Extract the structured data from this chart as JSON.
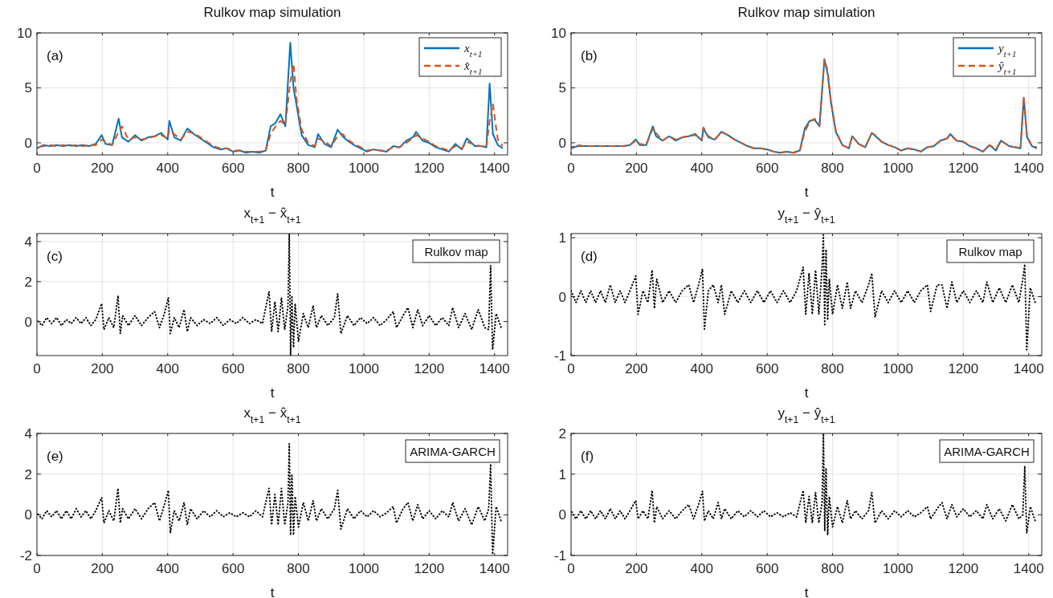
{
  "chart_data": [
    {
      "type": "line",
      "title": "Rulkov map simulation",
      "xlabel": "t",
      "xlim": [
        0,
        1440
      ],
      "xticks": [
        0,
        200,
        400,
        600,
        800,
        1000,
        1200,
        1400
      ],
      "ylim": [
        -1.1,
        10
      ],
      "yticks": [
        0,
        5,
        10
      ],
      "grid": true,
      "legend": "top right",
      "annotations": [
        "(a)"
      ],
      "x": [
        0,
        20,
        40,
        60,
        80,
        100,
        120,
        140,
        160,
        180,
        198,
        210,
        230,
        250,
        260,
        280,
        300,
        320,
        340,
        360,
        380,
        400,
        405,
        420,
        440,
        460,
        480,
        500,
        520,
        540,
        560,
        580,
        600,
        620,
        640,
        660,
        680,
        700,
        715,
        730,
        745,
        760,
        775,
        785,
        795,
        810,
        830,
        850,
        860,
        880,
        900,
        920,
        935,
        950,
        970,
        990,
        1010,
        1030,
        1050,
        1070,
        1090,
        1110,
        1130,
        1150,
        1160,
        1180,
        1200,
        1220,
        1240,
        1260,
        1280,
        1300,
        1315,
        1340,
        1360,
        1375,
        1385,
        1395,
        1410,
        1425
      ],
      "series": [
        {
          "name": "x$_{t+1}$",
          "color": "#0072bd",
          "line_style": "solid",
          "values": [
            -0.5,
            -0.2,
            -0.3,
            -0.2,
            -0.3,
            -0.2,
            -0.3,
            -0.2,
            -0.3,
            -0.1,
            0.7,
            -0.1,
            -0.2,
            2.2,
            0.5,
            0.1,
            0.7,
            0.2,
            0.5,
            0.6,
            0.9,
            0.3,
            2.0,
            0.5,
            0.2,
            1.3,
            0.8,
            0.4,
            0.0,
            -0.4,
            -0.6,
            -0.5,
            -0.8,
            -0.7,
            -0.9,
            -0.8,
            -0.9,
            -0.7,
            1.5,
            1.8,
            2.6,
            1.5,
            9.1,
            5.0,
            3.3,
            0.7,
            -0.2,
            -0.4,
            0.8,
            -0.1,
            -0.4,
            1.2,
            0.6,
            0.2,
            -0.2,
            -0.5,
            -0.8,
            -0.6,
            -0.7,
            -0.8,
            -0.3,
            -0.4,
            0.2,
            0.5,
            1.0,
            0.2,
            0.0,
            -0.4,
            -0.6,
            -0.8,
            -0.1,
            -0.6,
            0.4,
            -0.3,
            -0.3,
            -0.4,
            5.4,
            0.8,
            -0.2,
            -0.5
          ]
        },
        {
          "name": "x̂$_{t+1}$",
          "color": "#d95319",
          "line_style": "dashed",
          "values": [
            -0.4,
            -0.3,
            -0.2,
            -0.3,
            -0.2,
            -0.3,
            -0.2,
            -0.3,
            -0.2,
            -0.2,
            0.3,
            0.1,
            -0.2,
            1.0,
            1.5,
            0.3,
            0.5,
            0.3,
            0.4,
            0.6,
            0.7,
            0.4,
            1.2,
            0.8,
            0.3,
            1.0,
            0.9,
            0.5,
            0.1,
            -0.3,
            -0.5,
            -0.5,
            -0.7,
            -0.7,
            -0.8,
            -0.8,
            -0.8,
            -0.7,
            0.8,
            1.5,
            2.0,
            1.6,
            5.5,
            7.2,
            3.8,
            1.2,
            0.0,
            -0.3,
            0.4,
            0.1,
            -0.3,
            0.6,
            0.8,
            0.3,
            -0.1,
            -0.4,
            -0.7,
            -0.6,
            -0.7,
            -0.7,
            -0.4,
            -0.4,
            0.0,
            0.4,
            0.7,
            0.4,
            0.1,
            -0.3,
            -0.5,
            -0.7,
            -0.3,
            -0.5,
            0.1,
            -0.2,
            -0.3,
            -0.4,
            2.0,
            3.5,
            0.3,
            -0.3
          ]
        }
      ]
    },
    {
      "type": "line",
      "title": "Rulkov map simulation",
      "xlabel": "t",
      "xlim": [
        0,
        1440
      ],
      "xticks": [
        0,
        200,
        400,
        600,
        800,
        1000,
        1200,
        1400
      ],
      "ylim": [
        -1.1,
        10
      ],
      "yticks": [
        0,
        5,
        10
      ],
      "grid": true,
      "legend": "top right",
      "annotations": [
        "(b)"
      ],
      "x": [
        0,
        20,
        40,
        60,
        80,
        100,
        120,
        140,
        160,
        180,
        198,
        210,
        230,
        250,
        260,
        280,
        300,
        320,
        340,
        360,
        380,
        400,
        405,
        420,
        440,
        460,
        480,
        500,
        520,
        540,
        560,
        580,
        600,
        620,
        640,
        660,
        680,
        700,
        715,
        730,
        745,
        760,
        775,
        785,
        795,
        810,
        830,
        850,
        860,
        880,
        900,
        920,
        935,
        950,
        970,
        990,
        1010,
        1030,
        1050,
        1070,
        1090,
        1110,
        1130,
        1150,
        1160,
        1180,
        1200,
        1220,
        1240,
        1260,
        1280,
        1300,
        1315,
        1340,
        1360,
        1375,
        1385,
        1395,
        1410,
        1425
      ],
      "series": [
        {
          "name": "y$_{t+1}$",
          "color": "#0072bd",
          "line_style": "solid",
          "values": [
            -0.5,
            -0.3,
            -0.3,
            -0.3,
            -0.3,
            -0.3,
            -0.3,
            -0.3,
            -0.3,
            -0.2,
            0.3,
            -0.2,
            -0.2,
            1.5,
            0.6,
            0.2,
            0.6,
            0.2,
            0.5,
            0.6,
            0.8,
            0.2,
            1.3,
            0.5,
            0.3,
            1.0,
            0.7,
            0.3,
            0.0,
            -0.3,
            -0.5,
            -0.5,
            -0.6,
            -0.8,
            -0.9,
            -0.8,
            -0.9,
            -0.7,
            1.3,
            2.0,
            2.1,
            1.5,
            7.6,
            6.3,
            3.7,
            1.0,
            -0.2,
            -0.5,
            0.6,
            -0.1,
            -0.4,
            0.9,
            0.5,
            0.1,
            -0.2,
            -0.4,
            -0.7,
            -0.5,
            -0.6,
            -0.8,
            -0.4,
            -0.3,
            0.2,
            0.4,
            0.8,
            0.2,
            0.1,
            -0.3,
            -0.5,
            -0.8,
            -0.2,
            -0.7,
            0.2,
            -0.3,
            -0.4,
            -0.5,
            4.1,
            0.5,
            -0.3,
            -0.5
          ]
        },
        {
          "name": "ŷ$_{t+1}$",
          "color": "#d95319",
          "line_style": "dashed",
          "values": [
            -0.4,
            -0.2,
            -0.3,
            -0.3,
            -0.3,
            -0.3,
            -0.3,
            -0.3,
            -0.3,
            -0.2,
            0.2,
            -0.1,
            -0.2,
            1.3,
            0.9,
            0.2,
            0.6,
            0.3,
            0.5,
            0.6,
            0.7,
            0.3,
            1.4,
            0.6,
            0.3,
            1.0,
            0.7,
            0.3,
            0.0,
            -0.3,
            -0.5,
            -0.5,
            -0.6,
            -0.8,
            -0.9,
            -0.8,
            -0.9,
            -0.7,
            1.0,
            1.9,
            2.2,
            1.6,
            7.6,
            6.6,
            3.8,
            1.1,
            -0.2,
            -0.5,
            0.6,
            -0.1,
            -0.4,
            0.9,
            0.6,
            0.1,
            -0.2,
            -0.4,
            -0.7,
            -0.5,
            -0.6,
            -0.8,
            -0.4,
            -0.3,
            0.2,
            0.4,
            0.7,
            0.2,
            0.1,
            -0.3,
            -0.5,
            -0.8,
            -0.2,
            -0.6,
            0.2,
            -0.3,
            -0.4,
            -0.5,
            4.2,
            0.6,
            -0.3,
            -0.4
          ]
        }
      ]
    },
    {
      "type": "line",
      "title": "x$_{t+1}$ − x̂$_{t+1}$",
      "xlabel": "t",
      "xlim": [
        0,
        1440
      ],
      "xticks": [
        0,
        200,
        400,
        600,
        800,
        1000,
        1200,
        1400
      ],
      "ylim": [
        -1.7,
        4.4
      ],
      "yticks": [
        0,
        2,
        4
      ],
      "grid": true,
      "annotations": [
        "(c)",
        "Rulkov map"
      ],
      "x": [
        0,
        15,
        30,
        45,
        60,
        75,
        90,
        105,
        120,
        135,
        150,
        165,
        180,
        198,
        205,
        220,
        235,
        248,
        255,
        262,
        280,
        300,
        320,
        340,
        360,
        375,
        390,
        402,
        408,
        420,
        435,
        450,
        460,
        470,
        490,
        510,
        530,
        550,
        570,
        590,
        610,
        630,
        650,
        670,
        690,
        710,
        718,
        728,
        738,
        748,
        758,
        768,
        772,
        776,
        780,
        785,
        790,
        800,
        815,
        830,
        845,
        855,
        870,
        890,
        910,
        920,
        930,
        950,
        970,
        990,
        1010,
        1030,
        1050,
        1070,
        1090,
        1100,
        1120,
        1135,
        1150,
        1165,
        1180,
        1200,
        1220,
        1240,
        1260,
        1272,
        1290,
        1310,
        1330,
        1350,
        1370,
        1382,
        1388,
        1394,
        1405,
        1420
      ],
      "series": [
        {
          "color": "#000000",
          "line_style": "dotted",
          "values": [
            0.1,
            -0.2,
            0.2,
            -0.1,
            0.2,
            -0.2,
            0.1,
            -0.1,
            0.2,
            -0.1,
            0.2,
            -0.2,
            0.1,
            0.9,
            -0.4,
            0.2,
            -0.3,
            1.3,
            -0.6,
            0.3,
            -0.2,
            0.3,
            -0.2,
            0.2,
            0.5,
            -0.3,
            0.4,
            1.2,
            -0.6,
            0.2,
            -0.3,
            0.6,
            -0.5,
            0.2,
            -0.2,
            0.1,
            -0.1,
            0.2,
            -0.2,
            0.1,
            -0.1,
            0.2,
            -0.1,
            0.1,
            -0.1,
            1.5,
            -0.5,
            1.0,
            -0.5,
            1.2,
            -0.4,
            0.8,
            4.4,
            -1.7,
            1.3,
            -1.3,
            0.9,
            -1.0,
            0.4,
            -0.3,
            0.8,
            -0.3,
            0.3,
            -0.2,
            0.2,
            1.4,
            -0.6,
            0.3,
            -0.2,
            0.2,
            -0.1,
            0.2,
            -0.2,
            0.1,
            0.5,
            -0.3,
            0.3,
            0.7,
            -0.3,
            0.6,
            -0.2,
            0.3,
            -0.2,
            0.2,
            -0.2,
            0.7,
            -0.3,
            0.4,
            -0.4,
            0.6,
            -0.3,
            -0.4,
            2.8,
            -1.4,
            0.4,
            -0.3
          ]
        }
      ]
    },
    {
      "type": "line",
      "title": "y$_{t+1}$ − ŷ$_{t+1}$",
      "xlabel": "t",
      "xlim": [
        0,
        1440
      ],
      "xticks": [
        0,
        200,
        400,
        600,
        800,
        1000,
        1200,
        1400
      ],
      "ylim": [
        -1,
        1.07
      ],
      "yticks": [
        -1,
        0,
        1
      ],
      "grid": true,
      "annotations": [
        "(d)",
        "Rulkov map"
      ],
      "x": [
        0,
        15,
        30,
        45,
        60,
        75,
        90,
        105,
        120,
        135,
        150,
        165,
        180,
        198,
        205,
        220,
        235,
        248,
        255,
        262,
        280,
        300,
        320,
        340,
        360,
        375,
        390,
        402,
        408,
        420,
        435,
        450,
        460,
        470,
        490,
        510,
        530,
        550,
        570,
        590,
        610,
        630,
        650,
        670,
        690,
        710,
        718,
        728,
        738,
        748,
        758,
        768,
        772,
        776,
        780,
        785,
        790,
        800,
        815,
        830,
        845,
        855,
        870,
        890,
        910,
        920,
        930,
        950,
        970,
        990,
        1010,
        1030,
        1050,
        1070,
        1090,
        1100,
        1120,
        1135,
        1150,
        1165,
        1180,
        1200,
        1220,
        1240,
        1260,
        1272,
        1290,
        1310,
        1330,
        1350,
        1370,
        1382,
        1388,
        1394,
        1405,
        1420
      ],
      "series": [
        {
          "color": "#000000",
          "line_style": "dotted",
          "values": [
            0.1,
            -0.1,
            0.1,
            -0.1,
            0.1,
            -0.1,
            0.1,
            -0.1,
            0.2,
            -0.1,
            0.1,
            -0.1,
            0.1,
            0.35,
            -0.3,
            0.1,
            -0.1,
            0.45,
            -0.2,
            0.3,
            -0.1,
            0.1,
            -0.1,
            0.1,
            0.2,
            -0.1,
            0.2,
            0.47,
            -0.55,
            0.1,
            0.2,
            -0.1,
            0.2,
            -0.3,
            0.1,
            -0.1,
            0.1,
            -0.1,
            0.1,
            -0.1,
            0.1,
            -0.1,
            0.1,
            -0.1,
            0.1,
            0.5,
            -0.3,
            0.4,
            -0.3,
            0.45,
            -0.3,
            0.5,
            1.05,
            -0.5,
            0.8,
            -0.4,
            0.3,
            -0.3,
            0.2,
            -0.2,
            0.25,
            -0.2,
            0.1,
            -0.1,
            0.2,
            0.4,
            -0.35,
            0.1,
            -0.1,
            0.1,
            -0.1,
            0.1,
            -0.1,
            0.1,
            0.2,
            -0.25,
            0.2,
            0.2,
            -0.2,
            0.25,
            -0.1,
            0.1,
            -0.1,
            0.1,
            -0.1,
            0.25,
            -0.1,
            0.15,
            -0.1,
            0.2,
            -0.1,
            0.3,
            0.55,
            -0.9,
            0.15,
            -0.1
          ]
        }
      ]
    },
    {
      "type": "line",
      "title": "x$_{t+1}$ − x̂$_{t+1}$",
      "xlabel": "t",
      "xlim": [
        0,
        1440
      ],
      "xticks": [
        0,
        200,
        400,
        600,
        800,
        1000,
        1200,
        1400
      ],
      "ylim": [
        -2,
        4
      ],
      "yticks": [
        -2,
        0,
        2,
        4
      ],
      "grid": true,
      "annotations": [
        "(e)",
        "ARIMA-GARCH"
      ],
      "x": [
        0,
        15,
        30,
        45,
        60,
        75,
        90,
        105,
        120,
        135,
        150,
        165,
        180,
        198,
        205,
        220,
        235,
        248,
        255,
        262,
        280,
        300,
        320,
        340,
        360,
        375,
        390,
        402,
        408,
        420,
        435,
        450,
        460,
        470,
        490,
        510,
        530,
        550,
        570,
        590,
        610,
        630,
        650,
        670,
        690,
        710,
        718,
        728,
        738,
        748,
        758,
        768,
        772,
        776,
        780,
        785,
        790,
        800,
        815,
        830,
        845,
        855,
        870,
        890,
        910,
        920,
        930,
        950,
        970,
        990,
        1010,
        1030,
        1050,
        1070,
        1090,
        1100,
        1120,
        1135,
        1150,
        1165,
        1180,
        1200,
        1220,
        1240,
        1260,
        1272,
        1290,
        1310,
        1330,
        1350,
        1370,
        1382,
        1388,
        1394,
        1405,
        1420
      ],
      "series": [
        {
          "color": "#000000",
          "line_style": "dotted",
          "values": [
            0.1,
            -0.2,
            0.2,
            -0.1,
            0.2,
            -0.2,
            0.2,
            -0.2,
            0.3,
            -0.1,
            0.2,
            -0.2,
            0.2,
            0.85,
            -0.4,
            0.2,
            -0.3,
            1.3,
            -0.4,
            0.3,
            -0.2,
            0.3,
            -0.2,
            0.3,
            0.6,
            -0.3,
            0.5,
            1.2,
            -0.9,
            0.2,
            -0.3,
            0.6,
            -0.5,
            0.3,
            -0.2,
            0.2,
            -0.1,
            0.2,
            -0.1,
            0.1,
            -0.1,
            0.1,
            -0.1,
            0.2,
            -0.1,
            1.3,
            -0.5,
            1.0,
            -0.5,
            1.3,
            -0.5,
            0.6,
            3.5,
            -1.0,
            2.0,
            -1.0,
            0.9,
            -0.6,
            0.6,
            -0.3,
            0.7,
            -0.3,
            0.3,
            -0.2,
            0.3,
            1.2,
            -0.7,
            0.3,
            -0.2,
            0.2,
            -0.1,
            0.2,
            -0.1,
            0.1,
            0.4,
            -0.4,
            0.3,
            0.6,
            -0.3,
            0.5,
            -0.2,
            0.2,
            -0.2,
            0.2,
            -0.1,
            0.6,
            -0.3,
            0.3,
            -0.5,
            0.4,
            -0.3,
            0.3,
            2.5,
            -1.95,
            0.4,
            -0.3
          ]
        }
      ]
    },
    {
      "type": "line",
      "title": "y$_{t+1}$ − ŷ$_{t+1}$",
      "xlabel": "t",
      "xlim": [
        0,
        1440
      ],
      "xticks": [
        0,
        200,
        400,
        600,
        800,
        1000,
        1200,
        1400
      ],
      "ylim": [
        -1,
        2
      ],
      "yticks": [
        -1,
        0,
        1,
        2
      ],
      "grid": true,
      "annotations": [
        "(f)",
        "ARIMA-GARCH"
      ],
      "x": [
        0,
        15,
        30,
        45,
        60,
        75,
        90,
        105,
        120,
        135,
        150,
        165,
        180,
        198,
        205,
        220,
        235,
        248,
        255,
        262,
        280,
        300,
        320,
        340,
        360,
        375,
        390,
        402,
        408,
        420,
        435,
        450,
        460,
        470,
        490,
        510,
        530,
        550,
        570,
        590,
        610,
        630,
        650,
        670,
        690,
        710,
        718,
        728,
        738,
        748,
        758,
        768,
        772,
        776,
        780,
        785,
        790,
        800,
        815,
        830,
        845,
        855,
        870,
        890,
        910,
        920,
        930,
        950,
        970,
        990,
        1010,
        1030,
        1050,
        1070,
        1090,
        1100,
        1120,
        1135,
        1150,
        1165,
        1180,
        1200,
        1220,
        1240,
        1260,
        1272,
        1290,
        1310,
        1330,
        1350,
        1370,
        1382,
        1388,
        1394,
        1405,
        1420
      ],
      "series": [
        {
          "color": "#000000",
          "line_style": "dotted",
          "values": [
            0.1,
            -0.1,
            0.1,
            -0.1,
            0.1,
            -0.1,
            0.1,
            -0.1,
            0.15,
            -0.1,
            0.1,
            -0.1,
            0.1,
            0.35,
            -0.1,
            0.1,
            -0.1,
            0.6,
            -0.2,
            0.2,
            -0.1,
            0.1,
            -0.1,
            0.1,
            0.25,
            -0.1,
            0.25,
            0.58,
            -0.15,
            0.1,
            -0.1,
            0.3,
            -0.1,
            0.15,
            -0.1,
            0.1,
            -0.05,
            0.1,
            -0.05,
            0.1,
            -0.05,
            0.05,
            -0.05,
            0.05,
            -0.05,
            0.6,
            -0.2,
            0.45,
            -0.2,
            0.55,
            -0.2,
            0.3,
            2.0,
            -0.4,
            1.15,
            -0.5,
            0.45,
            -0.3,
            0.2,
            -0.2,
            0.35,
            -0.1,
            0.1,
            -0.1,
            0.1,
            0.55,
            -0.2,
            0.1,
            -0.1,
            0.1,
            -0.05,
            0.1,
            -0.05,
            0.05,
            0.2,
            -0.1,
            0.15,
            0.3,
            -0.1,
            0.25,
            -0.05,
            0.15,
            -0.05,
            0.1,
            -0.1,
            0.25,
            -0.1,
            0.15,
            -0.15,
            0.25,
            -0.1,
            0.0,
            1.2,
            -0.45,
            0.2,
            -0.15
          ]
        }
      ]
    }
  ]
}
